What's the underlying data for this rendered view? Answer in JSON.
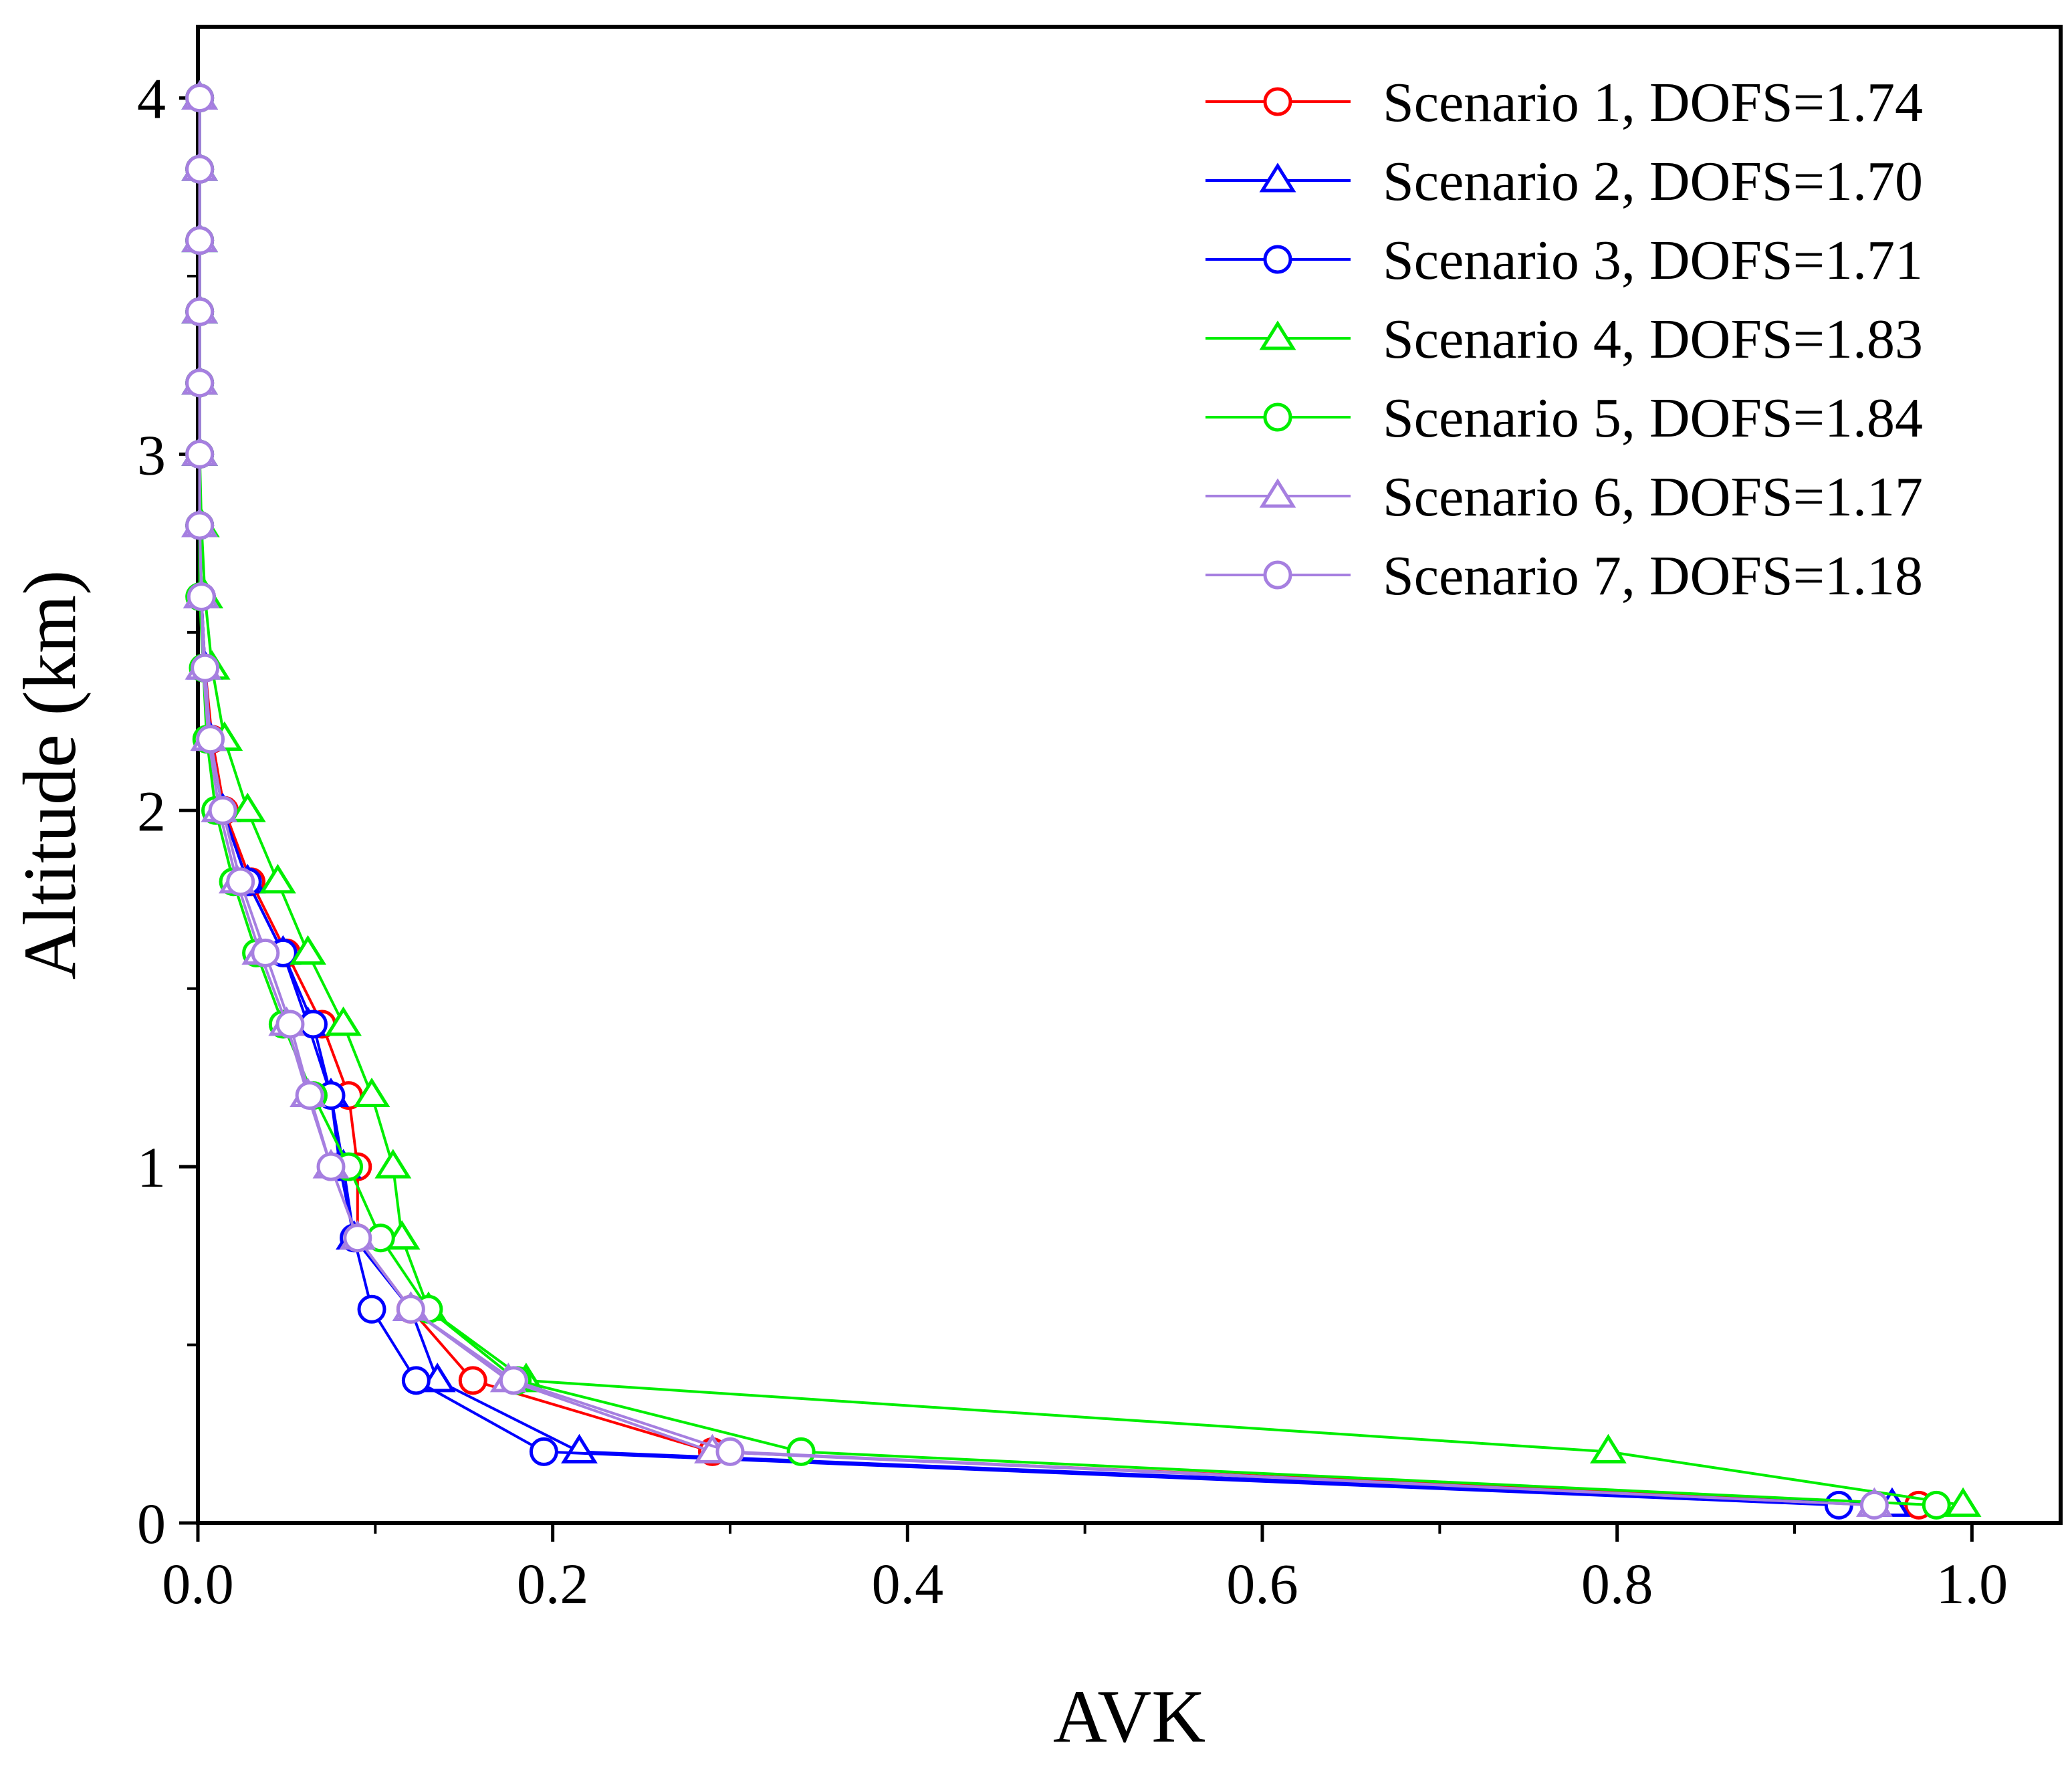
{
  "chart_data": {
    "type": "line",
    "title": "",
    "xlabel": "AVK",
    "ylabel": "Altitude (km)",
    "xlim": [
      0.0,
      1.05
    ],
    "ylim": [
      0,
      4.2
    ],
    "xticks": [
      "0.0",
      "0.2",
      "0.4",
      "0.6",
      "0.8",
      "1.0"
    ],
    "yticks": [
      "0",
      "1",
      "2",
      "3",
      "4"
    ],
    "grid": false,
    "legend_position": "top-right",
    "y_levels": [
      0.05,
      0.2,
      0.4,
      0.6,
      0.8,
      1.0,
      1.2,
      1.4,
      1.6,
      1.8,
      2.0,
      2.2,
      2.4,
      2.6,
      2.8,
      3.0,
      3.2,
      3.4,
      3.6,
      3.8,
      4.0
    ],
    "series": [
      {
        "name": "Scenario 1,  DOFS=1.74",
        "color": "#ff0000",
        "marker": "circle",
        "values": [
          0.97,
          0.29,
          0.155,
          0.12,
          0.09,
          0.09,
          0.085,
          0.07,
          0.05,
          0.03,
          0.015,
          0.008,
          0.004,
          0.002,
          0.001,
          0.001,
          0.001,
          0.001,
          0.001,
          0.001,
          0.001
        ]
      },
      {
        "name": "Scenario 2,  DOFS=1.70",
        "color": "#0000ff",
        "marker": "triangle",
        "values": [
          0.955,
          0.215,
          0.135,
          0.12,
          0.088,
          0.082,
          0.075,
          0.062,
          0.048,
          0.028,
          0.014,
          0.007,
          0.004,
          0.002,
          0.001,
          0.001,
          0.001,
          0.001,
          0.001,
          0.001,
          0.001
        ]
      },
      {
        "name": "Scenario 3,  DOFS=1.71",
        "color": "#0000ff",
        "marker": "circle",
        "values": [
          0.925,
          0.195,
          0.123,
          0.098,
          0.088,
          0.08,
          0.075,
          0.065,
          0.048,
          0.028,
          0.014,
          0.007,
          0.004,
          0.002,
          0.001,
          0.001,
          0.001,
          0.001,
          0.001,
          0.001,
          0.001
        ]
      },
      {
        "name": "Scenario 4,  DOFS=1.83",
        "color": "#00ee00",
        "marker": "triangle",
        "values": [
          0.995,
          0.795,
          0.185,
          0.13,
          0.115,
          0.11,
          0.098,
          0.082,
          0.062,
          0.045,
          0.028,
          0.015,
          0.008,
          0.004,
          0.002,
          0.001,
          0.001,
          0.001,
          0.001,
          0.001,
          0.001
        ]
      },
      {
        "name": "Scenario 5,  DOFS=1.84",
        "color": "#00ee00",
        "marker": "circle",
        "values": [
          0.98,
          0.34,
          0.18,
          0.13,
          0.103,
          0.085,
          0.065,
          0.048,
          0.033,
          0.02,
          0.01,
          0.005,
          0.003,
          0.001,
          0.001,
          0.001,
          0.001,
          0.001,
          0.001,
          0.001,
          0.001
        ]
      },
      {
        "name": "Scenario 6,  DOFS=1.17",
        "color": "#a67fe0",
        "marker": "triangle",
        "values": [
          0.945,
          0.29,
          0.175,
          0.12,
          0.09,
          0.075,
          0.062,
          0.05,
          0.035,
          0.022,
          0.012,
          0.006,
          0.003,
          0.002,
          0.001,
          0.001,
          0.001,
          0.001,
          0.001,
          0.001,
          0.001
        ]
      },
      {
        "name": "Scenario 7,  DOFS=1.18",
        "color": "#a67fe0",
        "marker": "circle",
        "values": [
          0.945,
          0.3,
          0.178,
          0.12,
          0.09,
          0.075,
          0.063,
          0.052,
          0.038,
          0.024,
          0.014,
          0.007,
          0.004,
          0.002,
          0.001,
          0.001,
          0.001,
          0.001,
          0.001,
          0.001,
          0.001
        ]
      }
    ]
  }
}
